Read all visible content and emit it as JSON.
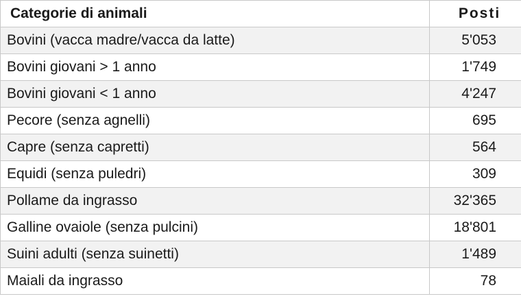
{
  "table": {
    "headers": {
      "category": "Categorie di animali",
      "places": "Posti"
    },
    "rows": [
      {
        "category": "Bovini (vacca madre/vacca da latte)",
        "places": "5'053"
      },
      {
        "category": "Bovini giovani > 1 anno",
        "places": "1'749"
      },
      {
        "category": "Bovini giovani < 1 anno",
        "places": "4'247"
      },
      {
        "category": "Pecore (senza agnelli)",
        "places": "695"
      },
      {
        "category": "Capre (senza capretti)",
        "places": "564"
      },
      {
        "category": "Equidi (senza puledri)",
        "places": "309"
      },
      {
        "category": "Pollame da ingrasso",
        "places": "32'365"
      },
      {
        "category": "Galline ovaiole (senza pulcini)",
        "places": "18'801"
      },
      {
        "category": "Suini adulti (senza suinetti)",
        "places": "1'489"
      },
      {
        "category": "Maiali da ingrasso",
        "places": "78"
      }
    ]
  }
}
